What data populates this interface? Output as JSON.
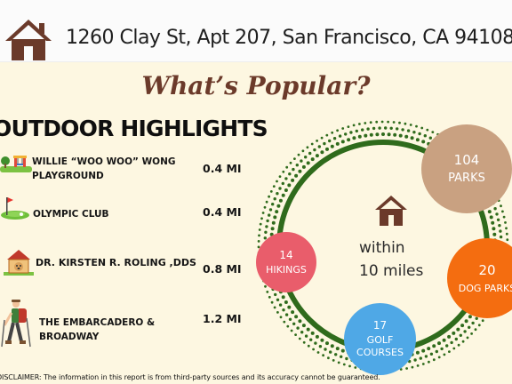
{
  "header": {
    "address": "1260 Clay St, Apt 207, San Francisco, CA 94108"
  },
  "title": "What’s Popular?",
  "section_title": "OUTDOOR HIGHLIGHTS",
  "highlights": [
    {
      "name": "WILLIE “WOO WOO” WONG PLAYGROUND",
      "distance": "0.4 MI",
      "icon": "playground-icon"
    },
    {
      "name": "OLYMPIC CLUB",
      "distance": "0.4 MI",
      "icon": "golf-green-icon"
    },
    {
      "name": "DR. KIRSTEN R. ROLING ,DDS",
      "distance": "0.8 MI",
      "icon": "dog-house-icon"
    },
    {
      "name": "THE EMBARCADERO & BROADWAY",
      "distance": "1.2 MI",
      "icon": "hiker-icon"
    }
  ],
  "radius": {
    "line1": "within",
    "line2": "10 miles"
  },
  "counts": {
    "parks": {
      "count": "104",
      "label": "PARKS"
    },
    "dog_parks": {
      "count": "20",
      "label": "DOG PARKS"
    },
    "hikings": {
      "count": "14",
      "label": "HIKINGS"
    },
    "golf": {
      "count": "17",
      "label_line1": "GOLF",
      "label_line2": "COURSES"
    }
  },
  "colors": {
    "background": "#fdf7e1",
    "brand_brown": "#6b3a2a",
    "ring_green": "#2f6b1c",
    "parks": "#c9a181",
    "dog_parks": "#f46d10",
    "hikings": "#e95d6b",
    "golf": "#4fa8e6"
  },
  "disclaimer": "DISCLAIMER: The information in this report is from third-party sources and its accuracy cannot be guaranteed."
}
